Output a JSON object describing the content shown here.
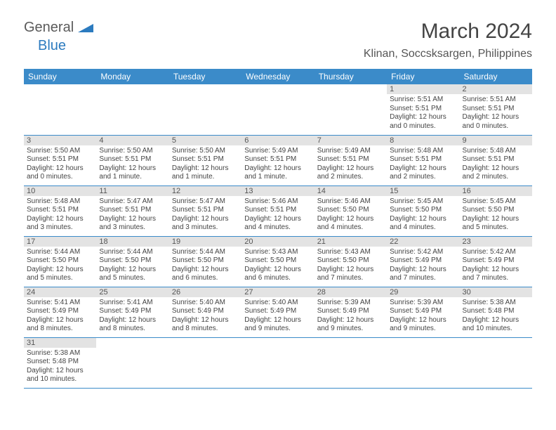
{
  "logo": {
    "general": "General",
    "blue": "Blue"
  },
  "title": "March 2024",
  "location": "Klinan, Soccsksargen, Philippines",
  "colors": {
    "header_bg": "#3b8bc9",
    "header_text": "#ffffff",
    "daynum_bg": "#e3e3e3",
    "row_border": "#3b8bc9",
    "logo_blue": "#2c7bbf",
    "logo_gray": "#5a5a5a"
  },
  "weekdays": [
    "Sunday",
    "Monday",
    "Tuesday",
    "Wednesday",
    "Thursday",
    "Friday",
    "Saturday"
  ],
  "first_weekday_index": 5,
  "days": [
    {
      "n": 1,
      "sunrise": "5:51 AM",
      "sunset": "5:51 PM",
      "daylight": "12 hours and 0 minutes."
    },
    {
      "n": 2,
      "sunrise": "5:51 AM",
      "sunset": "5:51 PM",
      "daylight": "12 hours and 0 minutes."
    },
    {
      "n": 3,
      "sunrise": "5:50 AM",
      "sunset": "5:51 PM",
      "daylight": "12 hours and 0 minutes."
    },
    {
      "n": 4,
      "sunrise": "5:50 AM",
      "sunset": "5:51 PM",
      "daylight": "12 hours and 1 minute."
    },
    {
      "n": 5,
      "sunrise": "5:50 AM",
      "sunset": "5:51 PM",
      "daylight": "12 hours and 1 minute."
    },
    {
      "n": 6,
      "sunrise": "5:49 AM",
      "sunset": "5:51 PM",
      "daylight": "12 hours and 1 minute."
    },
    {
      "n": 7,
      "sunrise": "5:49 AM",
      "sunset": "5:51 PM",
      "daylight": "12 hours and 2 minutes."
    },
    {
      "n": 8,
      "sunrise": "5:48 AM",
      "sunset": "5:51 PM",
      "daylight": "12 hours and 2 minutes."
    },
    {
      "n": 9,
      "sunrise": "5:48 AM",
      "sunset": "5:51 PM",
      "daylight": "12 hours and 2 minutes."
    },
    {
      "n": 10,
      "sunrise": "5:48 AM",
      "sunset": "5:51 PM",
      "daylight": "12 hours and 3 minutes."
    },
    {
      "n": 11,
      "sunrise": "5:47 AM",
      "sunset": "5:51 PM",
      "daylight": "12 hours and 3 minutes."
    },
    {
      "n": 12,
      "sunrise": "5:47 AM",
      "sunset": "5:51 PM",
      "daylight": "12 hours and 3 minutes."
    },
    {
      "n": 13,
      "sunrise": "5:46 AM",
      "sunset": "5:51 PM",
      "daylight": "12 hours and 4 minutes."
    },
    {
      "n": 14,
      "sunrise": "5:46 AM",
      "sunset": "5:50 PM",
      "daylight": "12 hours and 4 minutes."
    },
    {
      "n": 15,
      "sunrise": "5:45 AM",
      "sunset": "5:50 PM",
      "daylight": "12 hours and 4 minutes."
    },
    {
      "n": 16,
      "sunrise": "5:45 AM",
      "sunset": "5:50 PM",
      "daylight": "12 hours and 5 minutes."
    },
    {
      "n": 17,
      "sunrise": "5:44 AM",
      "sunset": "5:50 PM",
      "daylight": "12 hours and 5 minutes."
    },
    {
      "n": 18,
      "sunrise": "5:44 AM",
      "sunset": "5:50 PM",
      "daylight": "12 hours and 5 minutes."
    },
    {
      "n": 19,
      "sunrise": "5:44 AM",
      "sunset": "5:50 PM",
      "daylight": "12 hours and 6 minutes."
    },
    {
      "n": 20,
      "sunrise": "5:43 AM",
      "sunset": "5:50 PM",
      "daylight": "12 hours and 6 minutes."
    },
    {
      "n": 21,
      "sunrise": "5:43 AM",
      "sunset": "5:50 PM",
      "daylight": "12 hours and 7 minutes."
    },
    {
      "n": 22,
      "sunrise": "5:42 AM",
      "sunset": "5:49 PM",
      "daylight": "12 hours and 7 minutes."
    },
    {
      "n": 23,
      "sunrise": "5:42 AM",
      "sunset": "5:49 PM",
      "daylight": "12 hours and 7 minutes."
    },
    {
      "n": 24,
      "sunrise": "5:41 AM",
      "sunset": "5:49 PM",
      "daylight": "12 hours and 8 minutes."
    },
    {
      "n": 25,
      "sunrise": "5:41 AM",
      "sunset": "5:49 PM",
      "daylight": "12 hours and 8 minutes."
    },
    {
      "n": 26,
      "sunrise": "5:40 AM",
      "sunset": "5:49 PM",
      "daylight": "12 hours and 8 minutes."
    },
    {
      "n": 27,
      "sunrise": "5:40 AM",
      "sunset": "5:49 PM",
      "daylight": "12 hours and 9 minutes."
    },
    {
      "n": 28,
      "sunrise": "5:39 AM",
      "sunset": "5:49 PM",
      "daylight": "12 hours and 9 minutes."
    },
    {
      "n": 29,
      "sunrise": "5:39 AM",
      "sunset": "5:49 PM",
      "daylight": "12 hours and 9 minutes."
    },
    {
      "n": 30,
      "sunrise": "5:38 AM",
      "sunset": "5:48 PM",
      "daylight": "12 hours and 10 minutes."
    },
    {
      "n": 31,
      "sunrise": "5:38 AM",
      "sunset": "5:48 PM",
      "daylight": "12 hours and 10 minutes."
    }
  ],
  "labels": {
    "sunrise": "Sunrise:",
    "sunset": "Sunset:",
    "daylight": "Daylight:"
  }
}
